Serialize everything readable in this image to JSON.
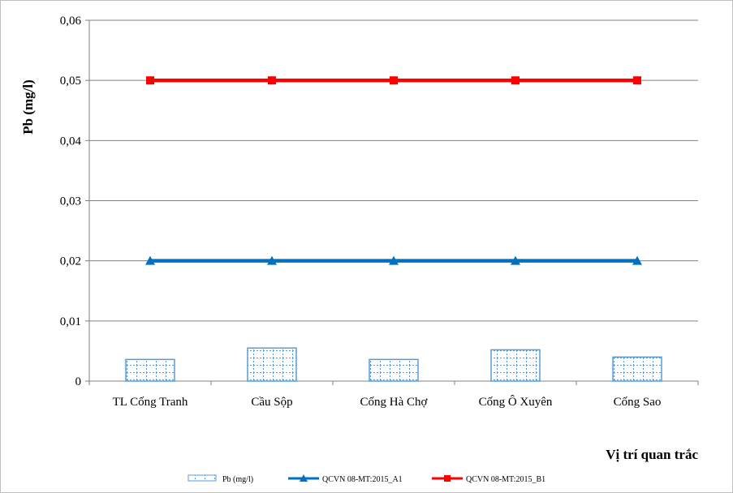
{
  "chart_data": {
    "type": "bar",
    "title": "",
    "xlabel": "Vị trí quan trắc",
    "ylabel": "Pb (mg/l)",
    "ylim": [
      0,
      0.06
    ],
    "yticks": [
      "0",
      "0,01",
      "0,02",
      "0,03",
      "0,04",
      "0,05",
      "0,06"
    ],
    "grid": true,
    "legend_position": "bottom",
    "categories": [
      "TL Cống Tranh",
      "Cầu Sộp",
      "Cống Hà Chợ",
      "Cống Ô Xuyên",
      "Cống Sao"
    ],
    "series": [
      {
        "name": "Pb (mg/l)",
        "kind": "bar",
        "color": "#5b9bd5",
        "values": [
          0.0036,
          0.0055,
          0.0036,
          0.0052,
          0.004
        ]
      },
      {
        "name": "QCVN 08-MT:2015_A1",
        "kind": "line",
        "marker": "triangle",
        "color": "#0070c0",
        "values": [
          0.02,
          0.02,
          0.02,
          0.02,
          0.02
        ]
      },
      {
        "name": "QCVN 08-MT:2015_B1",
        "kind": "line",
        "marker": "square",
        "color": "#ff0000",
        "values": [
          0.05,
          0.05,
          0.05,
          0.05,
          0.05
        ]
      }
    ]
  }
}
